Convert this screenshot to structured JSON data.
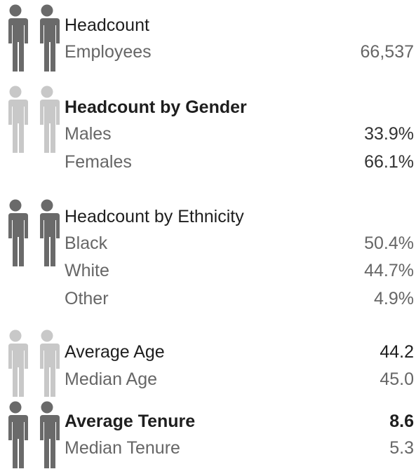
{
  "sections": [
    {
      "title": "Headcount",
      "rows": [
        {
          "label": "Employees",
          "value": "66,537"
        }
      ]
    },
    {
      "title": "Headcount by Gender",
      "rows": [
        {
          "label": "Males",
          "value": "33.9%"
        },
        {
          "label": "Females",
          "value": "66.1%"
        }
      ]
    },
    {
      "title": "Headcount by Ethnicity",
      "rows": [
        {
          "label": "Black",
          "value": "50.4%"
        },
        {
          "label": "White",
          "value": "44.7%"
        },
        {
          "label": "Other",
          "value": "4.9%"
        }
      ]
    },
    {
      "title": "Average Age",
      "title_value": "44.2",
      "rows": [
        {
          "label": "Median Age",
          "value": "45.0"
        }
      ]
    },
    {
      "title": "Average Tenure",
      "title_value": "8.6",
      "rows": [
        {
          "label": "Median Tenure",
          "value": "5.3"
        }
      ]
    }
  ]
}
